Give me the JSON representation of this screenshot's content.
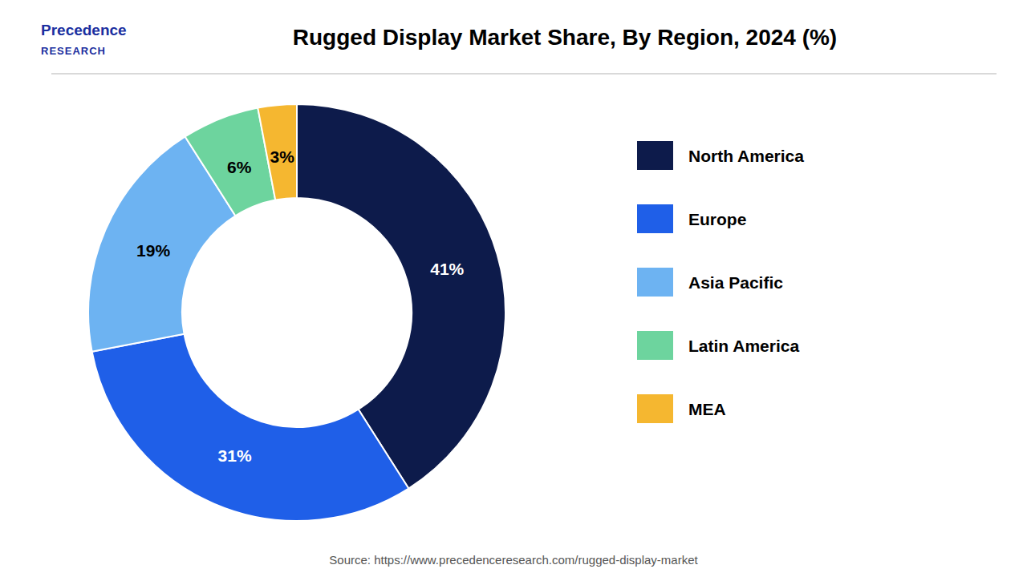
{
  "chart_data": {
    "type": "donut",
    "title": "Rugged Display Market Share, By Region, 2024 (%)",
    "categories": [
      "North America",
      "Europe",
      "Asia Pacific",
      "Latin America",
      "MEA"
    ],
    "values": [
      41,
      31,
      19,
      6,
      3
    ],
    "value_labels": [
      "41%",
      "31%",
      "19%",
      "6%",
      "3%"
    ],
    "colors": [
      "#0d1b4b",
      "#1f5fe8",
      "#6db3f2",
      "#6dd49e",
      "#f5b730"
    ],
    "data_labels": true,
    "legend": "right",
    "annotations": [
      "Precedence",
      "RESEARCH",
      "Source: https://www.precedenceresearch.com/rugged-display-market"
    ]
  }
}
